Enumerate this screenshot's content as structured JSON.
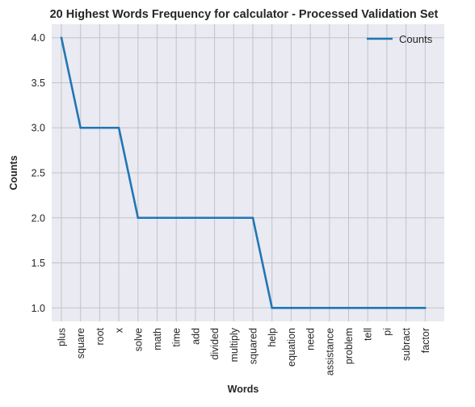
{
  "chart_data": {
    "type": "line",
    "title": "20 Highest Words Frequency for calculator - Processed Validation Set",
    "xlabel": "Words",
    "ylabel": "Counts",
    "categories": [
      "plus",
      "square",
      "root",
      "x",
      "solve",
      "math",
      "time",
      "add",
      "divided",
      "multiply",
      "squared",
      "help",
      "equation",
      "need",
      "assistance",
      "problem",
      "tell",
      "pi",
      "subract",
      "factor"
    ],
    "series": [
      {
        "name": "Counts",
        "values": [
          4,
          3,
          3,
          3,
          2,
          2,
          2,
          2,
          2,
          2,
          2,
          1,
          1,
          1,
          1,
          1,
          1,
          1,
          1,
          1
        ],
        "color": "#1f77b4"
      }
    ],
    "yticks": [
      "1.0",
      "1.5",
      "2.0",
      "2.5",
      "3.0",
      "3.5",
      "4.0"
    ],
    "ylim": [
      0.85,
      4.15
    ],
    "grid": true,
    "legend_position": "top-right",
    "colors": {
      "plot_background": "#eaeaf2",
      "grid": "#c2c2c8",
      "line": "#1f77b4",
      "text": "#262626"
    }
  }
}
